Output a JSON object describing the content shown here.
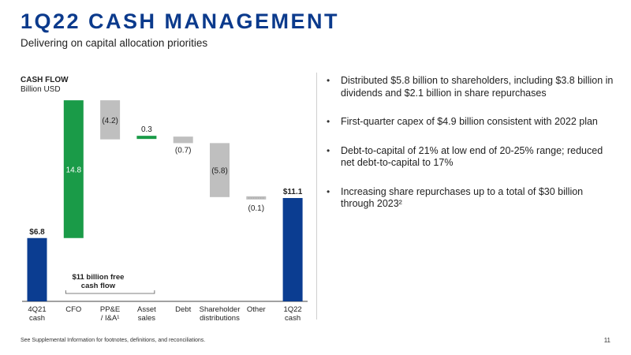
{
  "header": {
    "title": "1Q22 CASH MANAGEMENT",
    "subtitle": "Delivering on capital allocation priorities"
  },
  "chart_data": {
    "type": "bar",
    "subtype": "waterfall",
    "title": "CASH FLOW",
    "unit": "Billion USD",
    "categories": [
      [
        "4Q21",
        "cash"
      ],
      [
        "CFO"
      ],
      [
        "PP&E",
        "/ I&A¹"
      ],
      [
        "Asset",
        "sales"
      ],
      [
        "Debt"
      ],
      [
        "Shareholder",
        "distributions"
      ],
      [
        "Other"
      ],
      [
        "1Q22",
        "cash"
      ]
    ],
    "values": [
      6.8,
      14.8,
      -4.2,
      0.3,
      -0.7,
      -5.8,
      -0.1,
      11.1
    ],
    "kinds": [
      "total",
      "increase",
      "decrease",
      "increase",
      "decrease",
      "decrease",
      "decrease",
      "total"
    ],
    "data_labels": [
      "$6.8",
      "14.8",
      "(4.2)",
      "0.3",
      "(0.7)",
      "(5.8)",
      "(0.1)",
      "$11.1"
    ],
    "colors": {
      "total": "#0b3d91",
      "increase": "#1a9b48",
      "decrease": "#bfbfbf"
    },
    "annotation": {
      "text": [
        "$11 billion free",
        "cash flow"
      ],
      "spans": [
        "CFO",
        "PP&E / I&A¹"
      ]
    },
    "legend": "none",
    "grid": false
  },
  "bullets": [
    "Distributed $5.8 billion to shareholders, including $3.8 billion in dividends and $2.1 billion in share repurchases",
    "First-quarter capex of $4.9 billion consistent with 2022 plan",
    "Debt-to-capital of 21% at low end of 20-25% range; reduced net debt-to-capital to 17%",
    "Increasing share repurchases up to a total of $30 billion through 2023²"
  ],
  "footer": {
    "note": "See Supplemental Information for footnotes, definitions, and reconciliations.",
    "page": "11"
  }
}
